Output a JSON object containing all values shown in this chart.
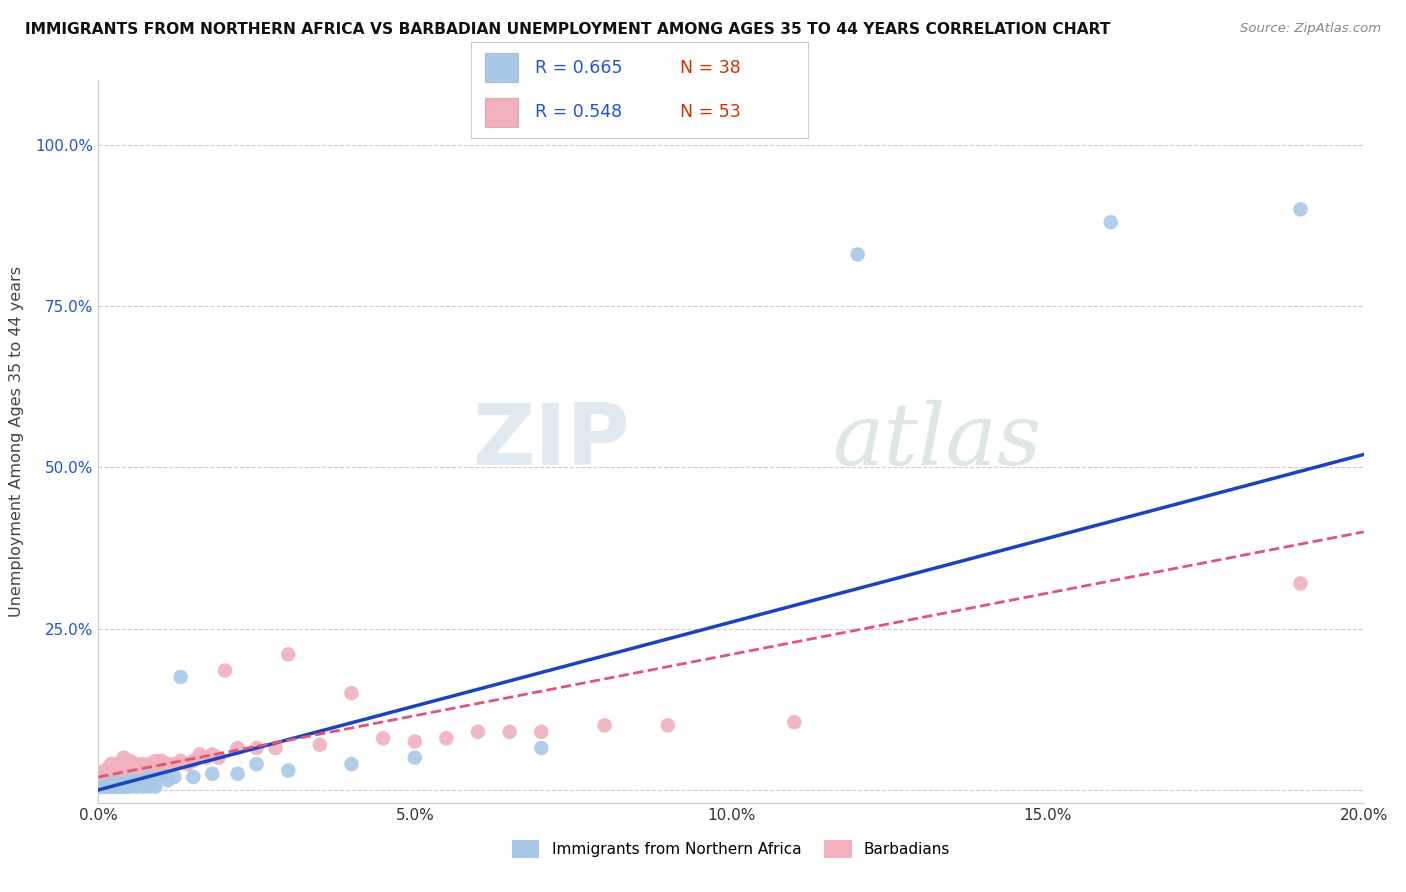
{
  "title": "IMMIGRANTS FROM NORTHERN AFRICA VS BARBADIAN UNEMPLOYMENT AMONG AGES 35 TO 44 YEARS CORRELATION CHART",
  "source": "Source: ZipAtlas.com",
  "ylabel": "Unemployment Among Ages 35 to 44 years",
  "xlim": [
    0.0,
    0.2
  ],
  "ylim": [
    -0.02,
    1.1
  ],
  "ytick_vals": [
    0.0,
    0.25,
    0.5,
    0.75,
    1.0
  ],
  "xtick_vals": [
    0.0,
    0.05,
    0.1,
    0.15,
    0.2
  ],
  "legend_label_blue": "Immigrants from Northern Africa",
  "legend_label_pink": "Barbadians",
  "blue_color": "#a8c8e8",
  "pink_color": "#f0b0bc",
  "blue_line_color": "#1a44bb",
  "pink_line_color": "#e05575",
  "watermark_zip": "ZIP",
  "watermark_atlas": "atlas",
  "blue_R": "R = 0.665",
  "blue_N": "N = 38",
  "pink_R": "R = 0.548",
  "pink_N": "N = 53",
  "R_color": "#2255cc",
  "N_color": "#cc3300",
  "blue_scatter_x": [
    0.0005,
    0.001,
    0.0015,
    0.002,
    0.002,
    0.0025,
    0.003,
    0.003,
    0.0035,
    0.004,
    0.004,
    0.0045,
    0.005,
    0.005,
    0.005,
    0.006,
    0.006,
    0.007,
    0.007,
    0.008,
    0.008,
    0.009,
    0.009,
    0.01,
    0.011,
    0.012,
    0.013,
    0.015,
    0.018,
    0.022,
    0.025,
    0.03,
    0.04,
    0.05,
    0.07,
    0.12,
    0.16,
    0.19
  ],
  "blue_scatter_y": [
    0.005,
    0.005,
    0.005,
    0.005,
    0.01,
    0.005,
    0.005,
    0.01,
    0.005,
    0.005,
    0.01,
    0.005,
    0.005,
    0.015,
    0.01,
    0.005,
    0.015,
    0.005,
    0.01,
    0.005,
    0.02,
    0.005,
    0.015,
    0.02,
    0.015,
    0.02,
    0.175,
    0.02,
    0.025,
    0.025,
    0.04,
    0.03,
    0.04,
    0.05,
    0.065,
    0.83,
    0.88,
    0.9
  ],
  "pink_scatter_x": [
    0.0002,
    0.0005,
    0.001,
    0.001,
    0.0015,
    0.002,
    0.002,
    0.002,
    0.003,
    0.003,
    0.003,
    0.004,
    0.004,
    0.004,
    0.005,
    0.005,
    0.005,
    0.006,
    0.006,
    0.007,
    0.007,
    0.008,
    0.008,
    0.009,
    0.009,
    0.01,
    0.01,
    0.011,
    0.012,
    0.013,
    0.014,
    0.015,
    0.016,
    0.017,
    0.018,
    0.019,
    0.02,
    0.022,
    0.025,
    0.028,
    0.03,
    0.035,
    0.04,
    0.045,
    0.05,
    0.055,
    0.06,
    0.065,
    0.07,
    0.08,
    0.09,
    0.11,
    0.19
  ],
  "pink_scatter_y": [
    0.005,
    0.02,
    0.02,
    0.03,
    0.025,
    0.02,
    0.03,
    0.04,
    0.02,
    0.03,
    0.04,
    0.02,
    0.035,
    0.05,
    0.02,
    0.035,
    0.045,
    0.02,
    0.04,
    0.025,
    0.04,
    0.025,
    0.04,
    0.03,
    0.045,
    0.025,
    0.045,
    0.04,
    0.04,
    0.045,
    0.04,
    0.045,
    0.055,
    0.05,
    0.055,
    0.05,
    0.185,
    0.065,
    0.065,
    0.065,
    0.21,
    0.07,
    0.15,
    0.08,
    0.075,
    0.08,
    0.09,
    0.09,
    0.09,
    0.1,
    0.1,
    0.105,
    0.32
  ],
  "blue_line_x": [
    0.0,
    0.2
  ],
  "blue_line_y": [
    0.0,
    0.52
  ],
  "pink_line_x": [
    0.0,
    0.2
  ],
  "pink_line_y": [
    0.02,
    0.4
  ]
}
